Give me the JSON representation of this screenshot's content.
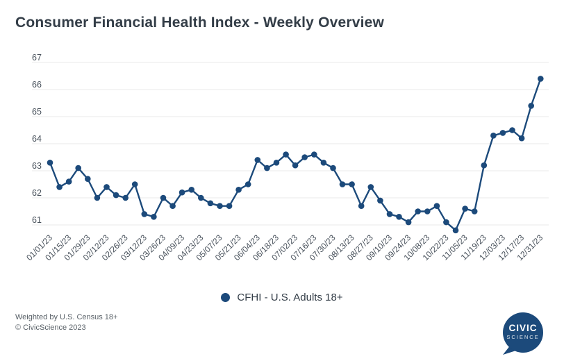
{
  "title": "Consumer Financial Health Index - Weekly Overview",
  "legend": {
    "items": [
      {
        "label": "CFHI - U.S. Adults 18+"
      }
    ]
  },
  "footer": {
    "line1": "Weighted by U.S. Census 18+",
    "line2": "© CivicScience 2023"
  },
  "logo": {
    "top": "CIVIC",
    "bottom": "SCIENCE"
  },
  "colors": {
    "accent": "#1c4a7b",
    "title_text": "#333d47",
    "axis_text": "#49525c",
    "grid": "#e8e8e8",
    "footer_text": "#575f66"
  },
  "chart_data": {
    "type": "line",
    "title": "Consumer Financial Health Index - Weekly Overview",
    "series": [
      {
        "name": "CFHI - U.S. Adults 18+",
        "values": [
          63.3,
          62.4,
          62.6,
          63.1,
          62.7,
          62.0,
          62.4,
          62.1,
          62.0,
          62.5,
          61.4,
          61.3,
          62.0,
          61.7,
          62.2,
          62.3,
          62.0,
          61.8,
          61.7,
          61.7,
          62.3,
          62.5,
          63.4,
          63.1,
          63.3,
          63.6,
          63.2,
          63.5,
          63.6,
          63.3,
          63.1,
          62.5,
          62.5,
          61.7,
          62.4,
          61.9,
          61.4,
          61.3,
          61.1,
          61.5,
          61.5,
          61.7,
          61.1,
          60.8,
          61.6,
          61.5,
          63.2,
          64.3,
          64.4,
          64.5,
          64.2,
          65.4,
          66.4
        ]
      }
    ],
    "x_tick_labels": [
      "01/01/23",
      "01/15/23",
      "01/29/23",
      "02/12/23",
      "02/26/23",
      "03/12/23",
      "03/26/23",
      "04/09/23",
      "04/23/23",
      "05/07/23",
      "05/21/23",
      "06/04/23",
      "06/18/23",
      "07/02/23",
      "07/16/23",
      "07/30/23",
      "08/13/23",
      "08/27/23",
      "09/10/23",
      "09/24/23",
      "10/08/23",
      "10/22/23",
      "11/05/23",
      "11/19/23",
      "12/03/23",
      "12/17/23",
      "12/31/23"
    ],
    "points_per_x_tick": 2,
    "y_ticks": [
      61,
      62,
      63,
      64,
      65,
      66,
      67
    ],
    "ylim": [
      60.5,
      67
    ],
    "xlabel": "",
    "ylabel": "",
    "grid": "horizontal",
    "marker": "filled-circle",
    "legend_position": "bottom-center"
  }
}
